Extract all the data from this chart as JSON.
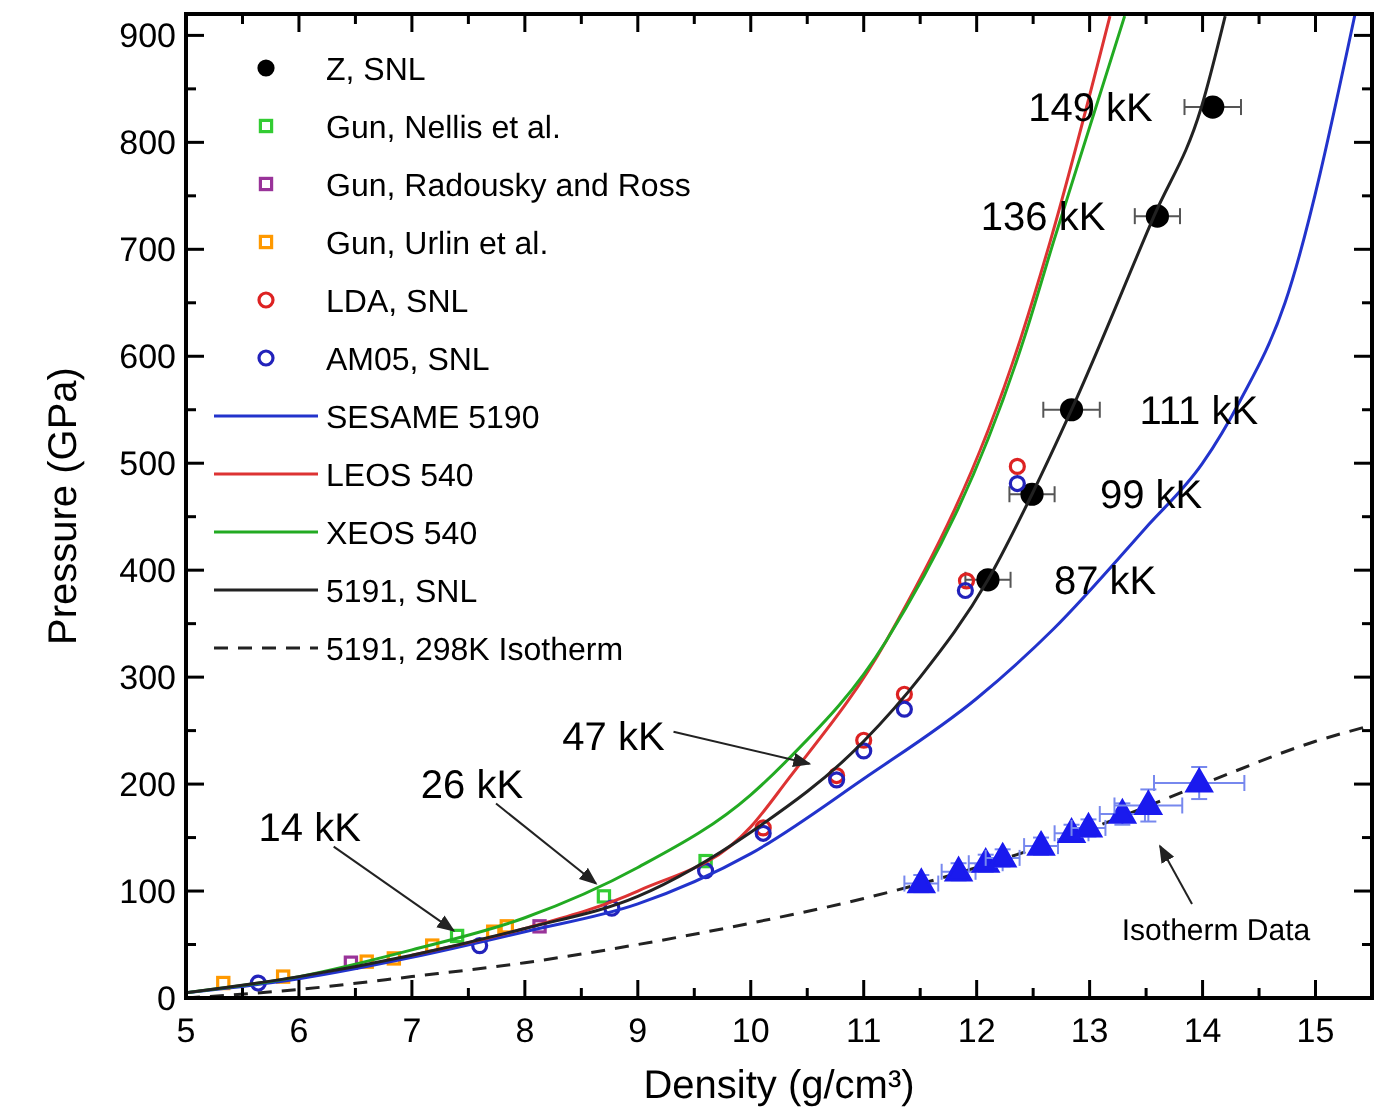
{
  "chart_data": {
    "type": "scatter",
    "xlabel": "Density (g/cm³)",
    "ylabel": "Pressure (GPa)",
    "xlim": [
      5,
      15.5
    ],
    "ylim": [
      0,
      920
    ],
    "xticks": [
      5,
      {
        "value": 5.5,
        "label": null
      },
      6,
      {
        "value": 6.5,
        "label": null
      },
      7,
      {
        "value": 7.5,
        "label": null
      },
      8,
      {
        "value": 8.5,
        "label": null
      },
      9,
      {
        "value": 9.5,
        "label": null
      },
      10,
      {
        "value": 10.5,
        "label": null
      },
      11,
      {
        "value": 11.5,
        "label": null
      },
      12,
      {
        "value": 12.5,
        "label": null
      },
      13,
      {
        "value": 13.5,
        "label": null
      },
      14,
      {
        "value": 14.5,
        "label": null
      },
      15
    ],
    "yticks": [
      0,
      {
        "value": 50,
        "label": null
      },
      100,
      {
        "value": 150,
        "label": null
      },
      200,
      {
        "value": 250,
        "label": null
      },
      300,
      {
        "value": 350,
        "label": null
      },
      400,
      {
        "value": 450,
        "label": null
      },
      500,
      {
        "value": 550,
        "label": null
      },
      600,
      {
        "value": 650,
        "label": null
      },
      700,
      {
        "value": 750,
        "label": null
      },
      800,
      {
        "value": 850,
        "label": null
      },
      900
    ],
    "grid": false,
    "legend": "top left",
    "series": [
      {
        "name": "Z, SNL",
        "marker": "circle",
        "color": "#000000",
        "x": [
          12.1,
          12.49,
          12.84,
          13.6,
          14.09
        ],
        "values": [
          391,
          471,
          550,
          731,
          833
        ],
        "xerrors": [
          0.2,
          0.2,
          0.25,
          0.2,
          0.25
        ]
      },
      {
        "name": "Gun, Nellis et al.",
        "marker": "square",
        "color": "#33cc33",
        "x": [
          7.4,
          8.7,
          9.6
        ],
        "values": [
          58,
          95,
          128
        ]
      },
      {
        "name": "Gun, Radousky and Ross",
        "marker": "square",
        "color": "#993399",
        "x": [
          6.46,
          8.13
        ],
        "values": [
          33,
          67
        ]
      },
      {
        "name": "Gun, Urlin et al.",
        "marker": "square",
        "color": "#ff9900",
        "x": [
          5.33,
          5.86,
          6.6,
          6.84,
          7.18,
          7.72,
          7.84
        ],
        "values": [
          14,
          20,
          34,
          37,
          49,
          62,
          67
        ]
      },
      {
        "name": "LDA, SNL",
        "marker": "circle",
        "color": "#dd2222",
        "x": [
          10.11,
          10.76,
          11.0,
          11.36,
          11.91,
          12.36
        ],
        "values": [
          159,
          208,
          241,
          284,
          390,
          497
        ]
      },
      {
        "name": "AM05, SNL",
        "marker": "circle",
        "color": "#2222bb",
        "x": [
          5.64,
          7.6,
          8.77,
          9.6,
          10.11,
          10.76,
          11.0,
          11.36,
          11.9,
          12.36
        ],
        "values": [
          14,
          49,
          84,
          119,
          154,
          204,
          231,
          270,
          381,
          481
        ]
      },
      {
        "name": "SESAME 5190",
        "type": "line",
        "line_style": "solid",
        "color": "#2233cc",
        "x": [
          5,
          6,
          7,
          8,
          9,
          10,
          11,
          12,
          12.68,
          13.5,
          14,
          14.33,
          14.73,
          15.35
        ],
        "values": [
          5,
          18,
          38,
          62,
          88,
          135,
          205,
          280,
          345,
          440,
          500,
          558,
          650,
          920
        ]
      },
      {
        "name": "LEOS 540",
        "type": "line",
        "line_style": "solid",
        "color": "#dd3333",
        "x": [
          7,
          8,
          9,
          10,
          10.32,
          11.2,
          12.4,
          12.65,
          13.18
        ],
        "values": [
          40,
          65,
          100,
          160,
          203,
          334,
          620,
          707,
          918
        ]
      },
      {
        "name": "XEOS 540",
        "type": "line",
        "line_style": "solid",
        "color": "#22aa22",
        "x": [
          5,
          6,
          7,
          8,
          9,
          10,
          10.32,
          11.2,
          12.43,
          12.68,
          13.31
        ],
        "values": [
          5,
          20,
          45,
          75,
          122,
          190,
          222,
          334,
          620,
          707,
          918
        ]
      },
      {
        "name": "5191, SNL",
        "type": "line",
        "line_style": "solid",
        "color": "#222222",
        "x": [
          5,
          6,
          7,
          8,
          9,
          10,
          11,
          11.5,
          12.1,
          12.49,
          12.84,
          13.57,
          13.99,
          14.2
        ],
        "values": [
          5,
          20,
          40,
          65,
          95,
          155,
          240,
          300,
          391,
          471,
          550,
          731,
          833,
          918
        ]
      },
      {
        "name": "5191, 298K Isotherm",
        "type": "line",
        "line_style": "dashed",
        "color": "#222222",
        "x": [
          5,
          6,
          7,
          8,
          9,
          10,
          11,
          12,
          13,
          14,
          15,
          15.5
        ],
        "values": [
          0,
          8,
          20,
          33,
          50,
          70,
          93,
          122,
          158,
          200,
          240,
          255
        ]
      },
      {
        "marker": "triangle",
        "color": "#1a1aee",
        "x": [
          11.51,
          11.84,
          12.08,
          12.23,
          12.57,
          12.84,
          12.99,
          13.29,
          13.52,
          13.97
        ],
        "values": [
          107,
          118,
          126,
          131,
          142,
          154,
          159,
          172,
          180,
          201
        ],
        "xerrors": [
          0.15,
          0.15,
          0.15,
          0.15,
          0.15,
          0.15,
          0.15,
          0.2,
          0.3,
          0.4
        ],
        "errors": [
          8,
          8,
          8,
          8,
          8,
          8,
          8,
          10,
          15,
          15
        ]
      }
    ],
    "annotations": [
      {
        "text": "149 kK",
        "x": 14.09,
        "y": 833
      },
      {
        "text": "136 kK",
        "x": 13.6,
        "y": 731
      },
      {
        "text": "111 kK",
        "x": 12.84,
        "y": 550
      },
      {
        "text": "99 kK",
        "x": 12.49,
        "y": 471
      },
      {
        "text": "87 kK",
        "x": 12.1,
        "y": 391
      },
      {
        "text": "47 kK",
        "x": 10.52,
        "y": 219
      },
      {
        "text": "26 kK",
        "x": 8.63,
        "y": 107
      },
      {
        "text": "14 kK",
        "x": 7.37,
        "y": 63
      },
      "Isotherm Data"
    ]
  }
}
